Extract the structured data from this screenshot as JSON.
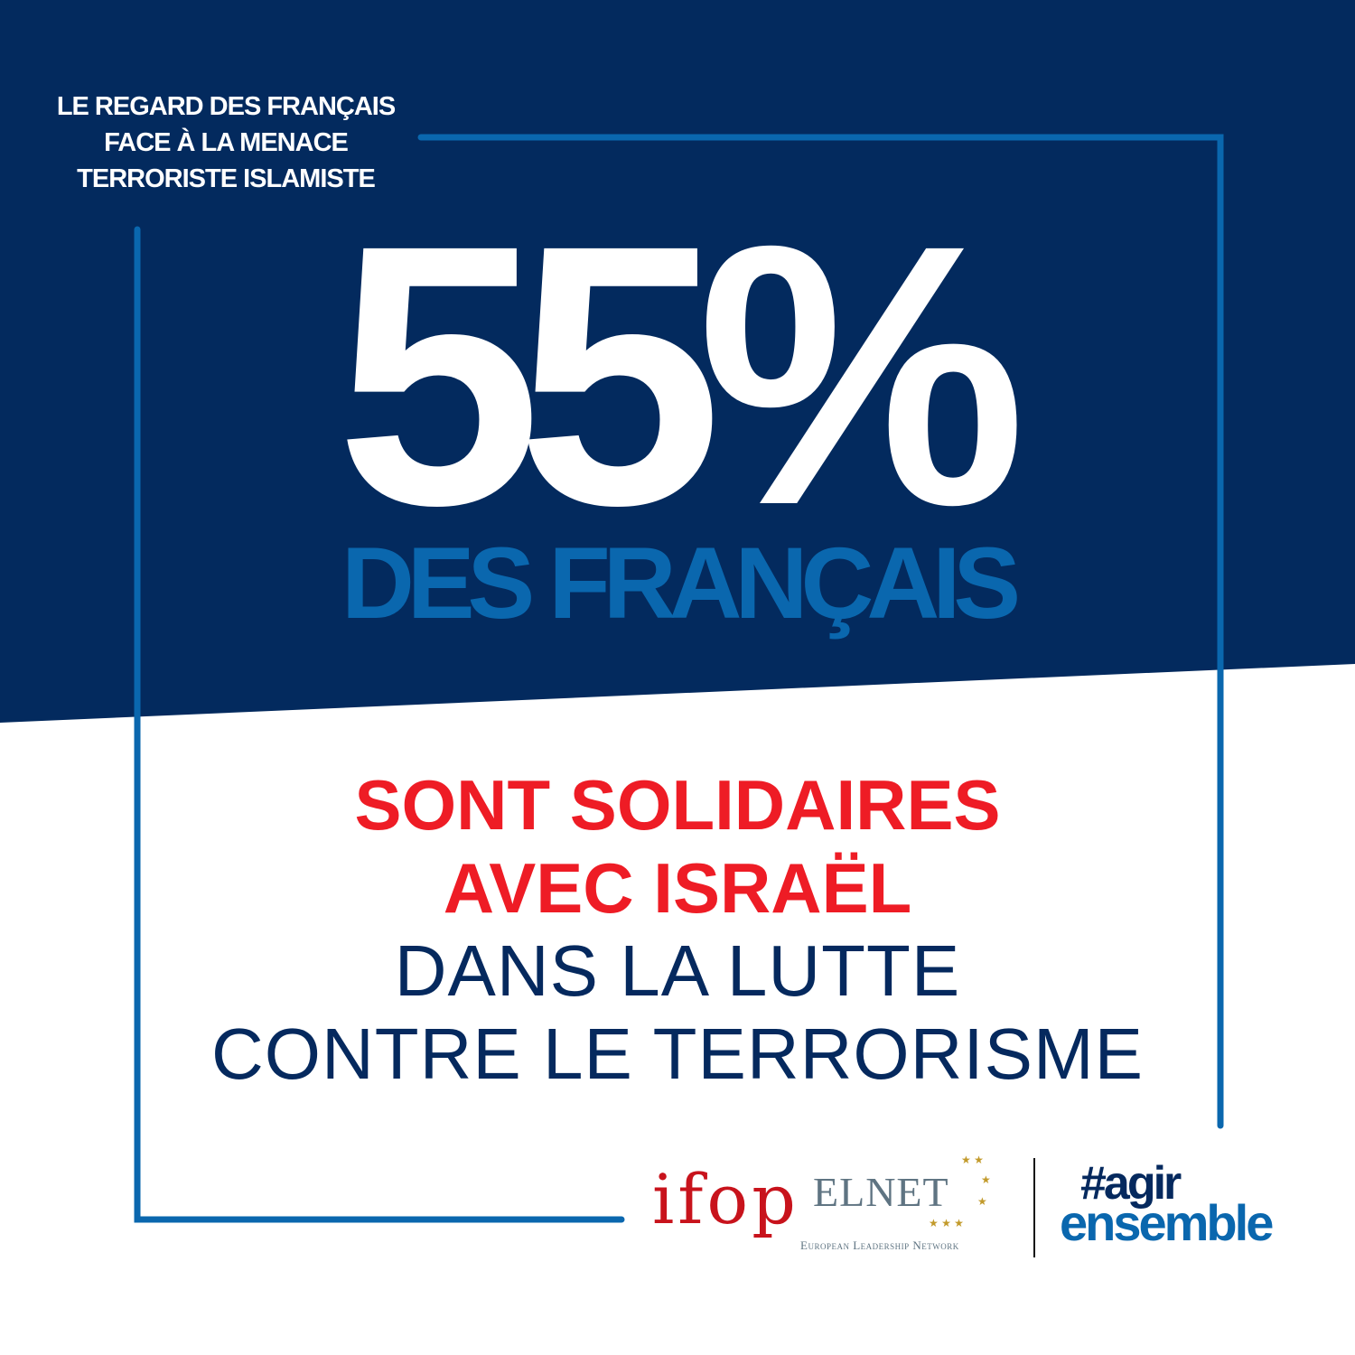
{
  "colors": {
    "navy": "#032a5e",
    "frame_blue": "#0a67ae",
    "red": "#ee1c25",
    "white": "#ffffff"
  },
  "kicker": [
    "LE REGARD DES FRANÇAIS",
    "FACE À LA MENACE",
    "TERRORISTE ISLAMISTE"
  ],
  "headline": {
    "percent": "55%",
    "subject": "DES FRANÇAIS"
  },
  "statement": {
    "emphasis": [
      "SONT SOLIDAIRES",
      "AVEC ISRAËL"
    ],
    "rest": [
      "DANS LA LUTTE",
      "CONTRE LE TERRORISME"
    ]
  },
  "logos": {
    "ifop": "ifop",
    "elnet": "ELNET",
    "elnet_sub": "European Leadership Network",
    "hashtag_line1": "#agir",
    "hashtag_line2": "ensemble"
  }
}
